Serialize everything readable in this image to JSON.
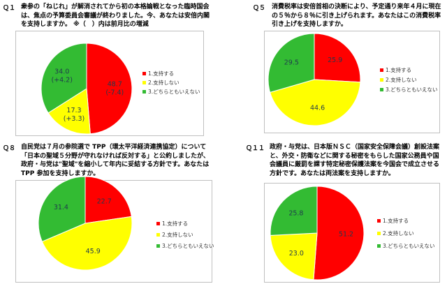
{
  "chart_data": [
    {
      "type": "pie",
      "qnum": "Ｑ１",
      "question": "衆参の「ねじれ」が解消されてから初の本格論戦となった臨時国会は、焦点の予算委員会審議が終わりました。今、あなたは安倍内閣を支持しますか。 ※（　）内は前月比の増減",
      "categories": [
        "1.支持する",
        "2.支持しない",
        "3.どちらともいえない"
      ],
      "values": [
        48.7,
        17.3,
        34.0
      ],
      "value_labels": [
        "48.7",
        "17.3",
        "34.0"
      ],
      "changes": [
        "(-7.4)",
        "(+3.3)",
        "(+4.2)"
      ]
    },
    {
      "type": "pie",
      "qnum": "Ｑ５",
      "question": "消費税率は安倍首相の決断により、予定通り来年４月に現在の５％から８％に引き上げられます。あなたはこの消費税率引き上げを支持しますか。",
      "categories": [
        "1.支持する",
        "2.支持しない",
        "3.どちらともいえない"
      ],
      "values": [
        25.9,
        44.6,
        29.5
      ],
      "value_labels": [
        "25.9",
        "44.6",
        "29.5"
      ]
    },
    {
      "type": "pie",
      "qnum": "Ｑ８",
      "question": "自民党は７月の参院選で TPP（環太平洋経済連携協定）について「日本の聖域５分野が守れなければ反対する」と公約しましたが、政府・与党は\"聖域\"を縮小して年内に妥結する方針です。あなたは TPP 参加を支持しますか。",
      "categories": [
        "1.支持する",
        "2.支持しない",
        "3.どちらともいえない"
      ],
      "values": [
        22.7,
        45.9,
        31.4
      ],
      "value_labels": [
        "22.7",
        "45.9",
        "31.4"
      ]
    },
    {
      "type": "pie",
      "qnum": "Ｑ１１",
      "question": "政府・与党は、日本版ＮＳＣ（国家安全保障会議）創設法案と、外交・防衛などに関する秘密をもらした国家公務員や国会議員に厳罰を課す特定秘密保護法案を今国会で成立させる方針です。あなたは両法案を支持しますか。",
      "categories": [
        "1.支持する",
        "2.支持しない",
        "3.どちらともいえない"
      ],
      "values": [
        51.2,
        23.0,
        25.8
      ],
      "value_labels": [
        "51.2",
        "23.0",
        "25.8"
      ]
    }
  ],
  "colors": [
    "#ff0000",
    "#ffff00",
    "#33bb33"
  ]
}
